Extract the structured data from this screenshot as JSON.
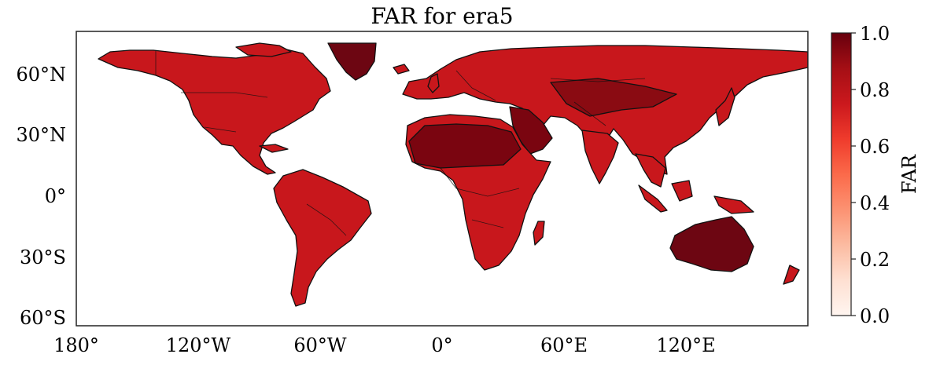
{
  "map": {
    "title": "FAR for era5",
    "lat_labels": [
      "60°N",
      "30°N",
      "0°",
      "30°S",
      "60°S"
    ],
    "lon_labels": [
      "180°",
      "120°W",
      "60°W",
      "0°",
      "60°E",
      "120°E"
    ]
  },
  "colorbar": {
    "label": "FAR",
    "tick_labels": [
      "0.0",
      "0.2",
      "0.4",
      "0.6",
      "0.8",
      "1.0"
    ],
    "ramp_colors": [
      "#fff5f0",
      "#fee0d2",
      "#fcbba1",
      "#fc9272",
      "#fb6a4a",
      "#ef3b2c",
      "#cb181d",
      "#a50f15",
      "#67000d"
    ]
  },
  "colors": {
    "land_low": "#e8412f",
    "land_mid": "#c8171c",
    "land_high": "#7a0510",
    "coast": "#111111"
  }
}
